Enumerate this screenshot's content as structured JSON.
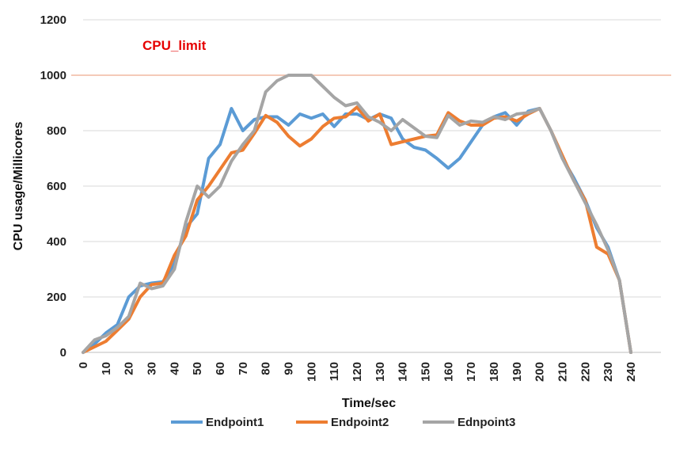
{
  "chart_data": {
    "type": "line",
    "xlabel": "Time/sec",
    "ylabel": "CPU usage/Millicores",
    "xlim": [
      0,
      240
    ],
    "ylim": [
      0,
      1200
    ],
    "xticks": [
      "0",
      "10",
      "20",
      "30",
      "40",
      "50",
      "60",
      "70",
      "80",
      "90",
      "100",
      "110",
      "120",
      "130",
      "140",
      "150",
      "160",
      "170",
      "180",
      "190",
      "200",
      "210",
      "220",
      "230",
      "240"
    ],
    "yticks": [
      "0",
      "200",
      "400",
      "600",
      "800",
      "1000",
      "1200"
    ],
    "grid": "horizontal",
    "legend_position": "bottom",
    "annotations": [
      {
        "text": "CPU_limit",
        "y": 1000,
        "color": "#e60000",
        "line_color": "#f0b9a0"
      }
    ],
    "series": [
      {
        "name": "Endpoint1",
        "color": "#5b9bd5",
        "x": [
          0,
          5,
          10,
          15,
          20,
          25,
          30,
          35,
          40,
          45,
          50,
          55,
          60,
          65,
          70,
          75,
          80,
          85,
          90,
          95,
          100,
          105,
          110,
          115,
          120,
          125,
          130,
          135,
          140,
          145,
          150,
          155,
          160,
          165,
          170,
          175,
          180,
          185,
          190,
          195,
          200,
          205,
          210,
          215,
          220,
          225,
          230,
          235,
          240
        ],
        "y": [
          0,
          30,
          70,
          100,
          200,
          240,
          250,
          255,
          320,
          450,
          500,
          700,
          750,
          880,
          800,
          840,
          850,
          850,
          820,
          860,
          845,
          860,
          815,
          860,
          860,
          840,
          860,
          845,
          770,
          740,
          730,
          700,
          665,
          700,
          760,
          820,
          850,
          865,
          820,
          870,
          880,
          800,
          700,
          630,
          550,
          450,
          380,
          260,
          0
        ]
      },
      {
        "name": "Endpoint2",
        "color": "#ed7d31",
        "x": [
          0,
          5,
          10,
          15,
          20,
          25,
          30,
          35,
          40,
          45,
          50,
          55,
          60,
          65,
          70,
          75,
          80,
          85,
          90,
          95,
          100,
          105,
          110,
          115,
          120,
          125,
          130,
          135,
          140,
          145,
          150,
          155,
          160,
          165,
          170,
          175,
          180,
          185,
          190,
          195,
          200,
          205,
          210,
          215,
          220,
          225,
          230,
          235,
          240
        ],
        "y": [
          0,
          20,
          40,
          80,
          120,
          200,
          245,
          250,
          350,
          420,
          550,
          600,
          660,
          720,
          730,
          790,
          855,
          830,
          780,
          745,
          770,
          815,
          845,
          850,
          885,
          835,
          860,
          750,
          760,
          770,
          780,
          785,
          865,
          835,
          820,
          820,
          845,
          850,
          835,
          860,
          880,
          800,
          710,
          620,
          550,
          380,
          355,
          260,
          0
        ]
      },
      {
        "name": "Ednpoint3",
        "color": "#a5a5a5",
        "x": [
          0,
          5,
          10,
          15,
          20,
          25,
          30,
          35,
          40,
          45,
          50,
          55,
          60,
          65,
          70,
          75,
          80,
          85,
          90,
          95,
          100,
          105,
          110,
          115,
          120,
          125,
          130,
          135,
          140,
          145,
          150,
          155,
          160,
          165,
          170,
          175,
          180,
          185,
          190,
          195,
          200,
          205,
          210,
          215,
          220,
          225,
          230,
          235,
          240
        ],
        "y": [
          0,
          45,
          60,
          90,
          130,
          250,
          230,
          240,
          300,
          470,
          600,
          560,
          600,
          690,
          750,
          800,
          940,
          980,
          1000,
          1000,
          1000,
          960,
          920,
          890,
          900,
          850,
          830,
          800,
          840,
          810,
          780,
          775,
          855,
          820,
          835,
          830,
          850,
          840,
          860,
          865,
          880,
          800,
          700,
          620,
          540,
          460,
          370,
          260,
          0
        ]
      }
    ]
  }
}
